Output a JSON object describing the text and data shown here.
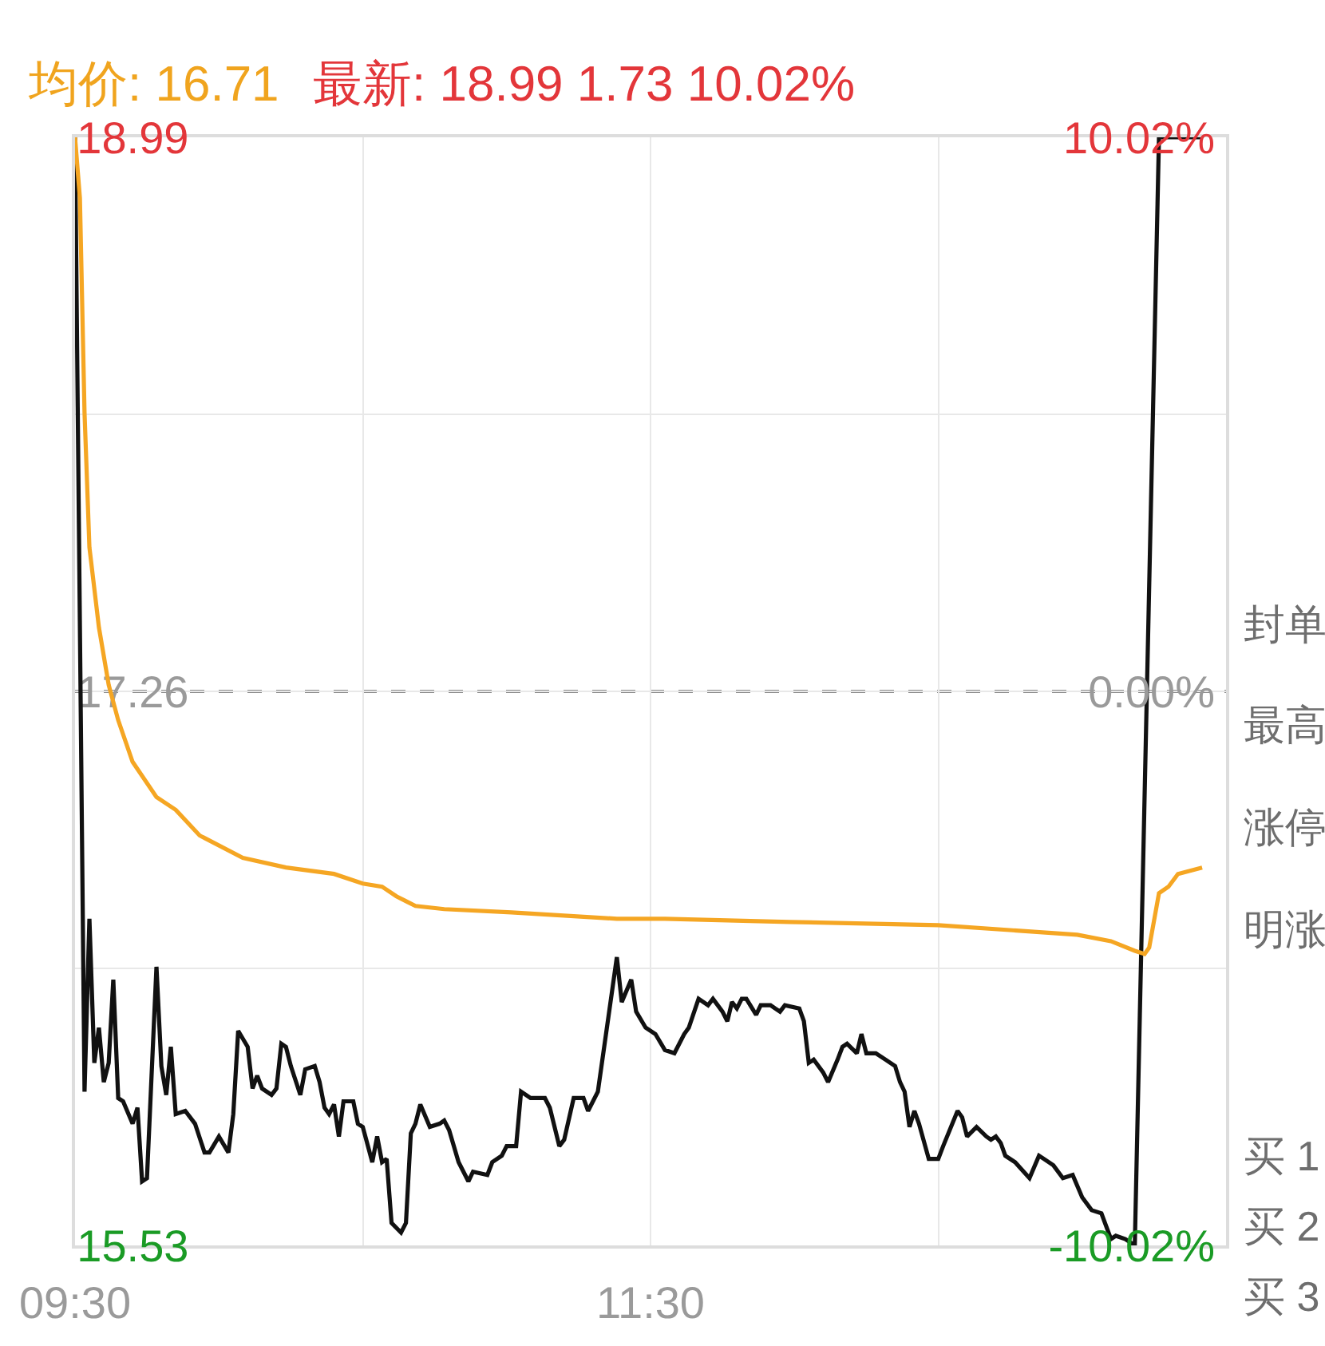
{
  "chart_data": {
    "type": "line",
    "title": "均价: 16.71",
    "subtitle": "最新: 18.99 1.73 10.02%",
    "xlim": [
      9.5,
      13.5
    ],
    "xticks": [
      {
        "value": 9.5,
        "label": "09:30"
      },
      {
        "value": 10.5,
        "label": null
      },
      {
        "value": 11.5,
        "label": "11:30"
      },
      {
        "value": 12.5,
        "label": null
      },
      {
        "value": 13.5,
        "label": null
      }
    ],
    "ylim": [
      15.53,
      18.99
    ],
    "yticks": [
      {
        "value": 18.99,
        "label": "18.99"
      },
      {
        "value": 18.125,
        "label": null
      },
      {
        "value": 17.26,
        "label": "17.26"
      },
      {
        "value": 16.395,
        "label": null
      },
      {
        "value": 15.53,
        "label": "15.53"
      }
    ],
    "y2lim": [
      -10.02,
      10.02
    ],
    "y2ticks": [
      {
        "value": 10.02,
        "label": "10.02%"
      },
      {
        "value": 0,
        "label": "0.00%"
      },
      {
        "value": -10.02,
        "label": "-10.02%"
      }
    ],
    "grid": true,
    "ref_lines": [
      {
        "axis": "y",
        "value": 17.26,
        "color": "#8c8c8c",
        "line_style": "dashed"
      }
    ],
    "series": [
      {
        "color": "#111111",
        "x": [
          9.5,
          9.533,
          9.55,
          9.567,
          9.583,
          9.6,
          9.617,
          9.633,
          9.65,
          9.667,
          9.7,
          9.717,
          9.733,
          9.75,
          9.783,
          9.8,
          9.817,
          9.833,
          9.85,
          9.883,
          9.917,
          9.95,
          9.967,
          10.0,
          10.033,
          10.05,
          10.067,
          10.1,
          10.117,
          10.133,
          10.15,
          10.183,
          10.2,
          10.217,
          10.233,
          10.25,
          10.283,
          10.3,
          10.333,
          10.35,
          10.367,
          10.383,
          10.4,
          10.417,
          10.433,
          10.467,
          10.483,
          10.5,
          10.533,
          10.55,
          10.567,
          10.583,
          10.6,
          10.633,
          10.65,
          10.667,
          10.683,
          10.7,
          10.733,
          10.767,
          10.783,
          10.8,
          10.833,
          10.867,
          10.883,
          10.933,
          10.95,
          10.983,
          11.0,
          11.033,
          11.05,
          11.083,
          11.133,
          11.15,
          11.183,
          11.2,
          11.233,
          11.267,
          11.283,
          11.317,
          11.383,
          11.4,
          11.433,
          11.45,
          11.483,
          11.517,
          11.55,
          11.583,
          11.617,
          11.633,
          11.667,
          11.7,
          11.717,
          11.75,
          11.767,
          11.783,
          11.8,
          11.817,
          11.833,
          11.867,
          11.883,
          11.917,
          11.933,
          11.95,
          11.967,
          12.017,
          12.033,
          12.05,
          12.067,
          12.1,
          12.117,
          12.15,
          12.167,
          12.183,
          12.217,
          12.233,
          12.25,
          12.283,
          12.317,
          12.35,
          12.367,
          12.383,
          12.4,
          12.417,
          12.433,
          12.467,
          12.5,
          12.517,
          12.567,
          12.583,
          12.6,
          12.633,
          12.667,
          12.683,
          12.7,
          12.717,
          12.733,
          12.767,
          12.817,
          12.85,
          12.867,
          12.9,
          12.933,
          12.967,
          13.0,
          13.033,
          13.067,
          13.1,
          13.117,
          13.15,
          13.183,
          13.267,
          13.417
        ],
        "values": [
          18.99,
          16.01,
          16.55,
          16.1,
          16.21,
          16.04,
          16.1,
          16.36,
          15.99,
          15.98,
          15.91,
          15.96,
          15.73,
          15.74,
          16.4,
          16.09,
          16.0,
          16.15,
          15.94,
          15.95,
          15.91,
          15.82,
          15.82,
          15.87,
          15.82,
          15.94,
          16.2,
          16.15,
          16.02,
          16.06,
          16.02,
          16.0,
          16.02,
          16.16,
          16.15,
          16.09,
          16.0,
          16.08,
          16.09,
          16.04,
          15.96,
          15.94,
          15.97,
          15.87,
          15.98,
          15.98,
          15.91,
          15.9,
          15.79,
          15.87,
          15.79,
          15.8,
          15.6,
          15.57,
          15.6,
          15.88,
          15.91,
          15.97,
          15.9,
          15.91,
          15.92,
          15.89,
          15.79,
          15.73,
          15.76,
          15.75,
          15.79,
          15.81,
          15.84,
          15.84,
          16.01,
          15.99,
          15.99,
          15.96,
          15.84,
          15.86,
          15.99,
          15.99,
          15.95,
          16.01,
          16.43,
          16.29,
          16.36,
          16.26,
          16.21,
          16.19,
          16.14,
          16.13,
          16.19,
          16.21,
          16.3,
          16.28,
          16.3,
          16.26,
          16.23,
          16.29,
          16.27,
          16.3,
          16.3,
          16.25,
          16.28,
          16.28,
          16.27,
          16.26,
          16.28,
          16.27,
          16.23,
          16.1,
          16.11,
          16.07,
          16.04,
          16.11,
          16.15,
          16.16,
          16.13,
          16.19,
          16.13,
          16.13,
          16.11,
          16.09,
          16.04,
          16.01,
          15.9,
          15.95,
          15.91,
          15.8,
          15.8,
          15.84,
          15.95,
          15.93,
          15.87,
          15.9,
          15.87,
          15.86,
          15.87,
          15.85,
          15.81,
          15.79,
          15.74,
          15.81,
          15.8,
          15.78,
          15.74,
          15.75,
          15.68,
          15.64,
          15.63,
          15.55,
          15.56,
          15.55,
          15.53,
          18.99,
          18.99
        ]
      },
      {
        "color": "#f5a623",
        "x": [
          9.5,
          9.517,
          9.533,
          9.55,
          9.583,
          9.617,
          9.65,
          9.7,
          9.783,
          9.85,
          9.933,
          10.083,
          10.233,
          10.4,
          10.5,
          10.567,
          10.617,
          10.683,
          10.783,
          11.017,
          11.383,
          11.55,
          11.983,
          12.5,
          12.983,
          13.1,
          13.183,
          13.217,
          13.233,
          13.267,
          13.3,
          13.333,
          13.417
        ],
        "values": [
          18.99,
          18.8,
          18.13,
          17.71,
          17.46,
          17.28,
          17.17,
          17.04,
          16.93,
          16.89,
          16.81,
          16.74,
          16.71,
          16.69,
          16.66,
          16.65,
          16.62,
          16.59,
          16.58,
          16.57,
          16.55,
          16.55,
          16.54,
          16.53,
          16.5,
          16.48,
          16.45,
          16.44,
          16.46,
          16.63,
          16.65,
          16.69,
          16.71
        ]
      }
    ],
    "annotations": [
      "封单",
      "最高",
      "涨停",
      "明涨",
      "买 1",
      "买 2",
      "买 3"
    ]
  }
}
